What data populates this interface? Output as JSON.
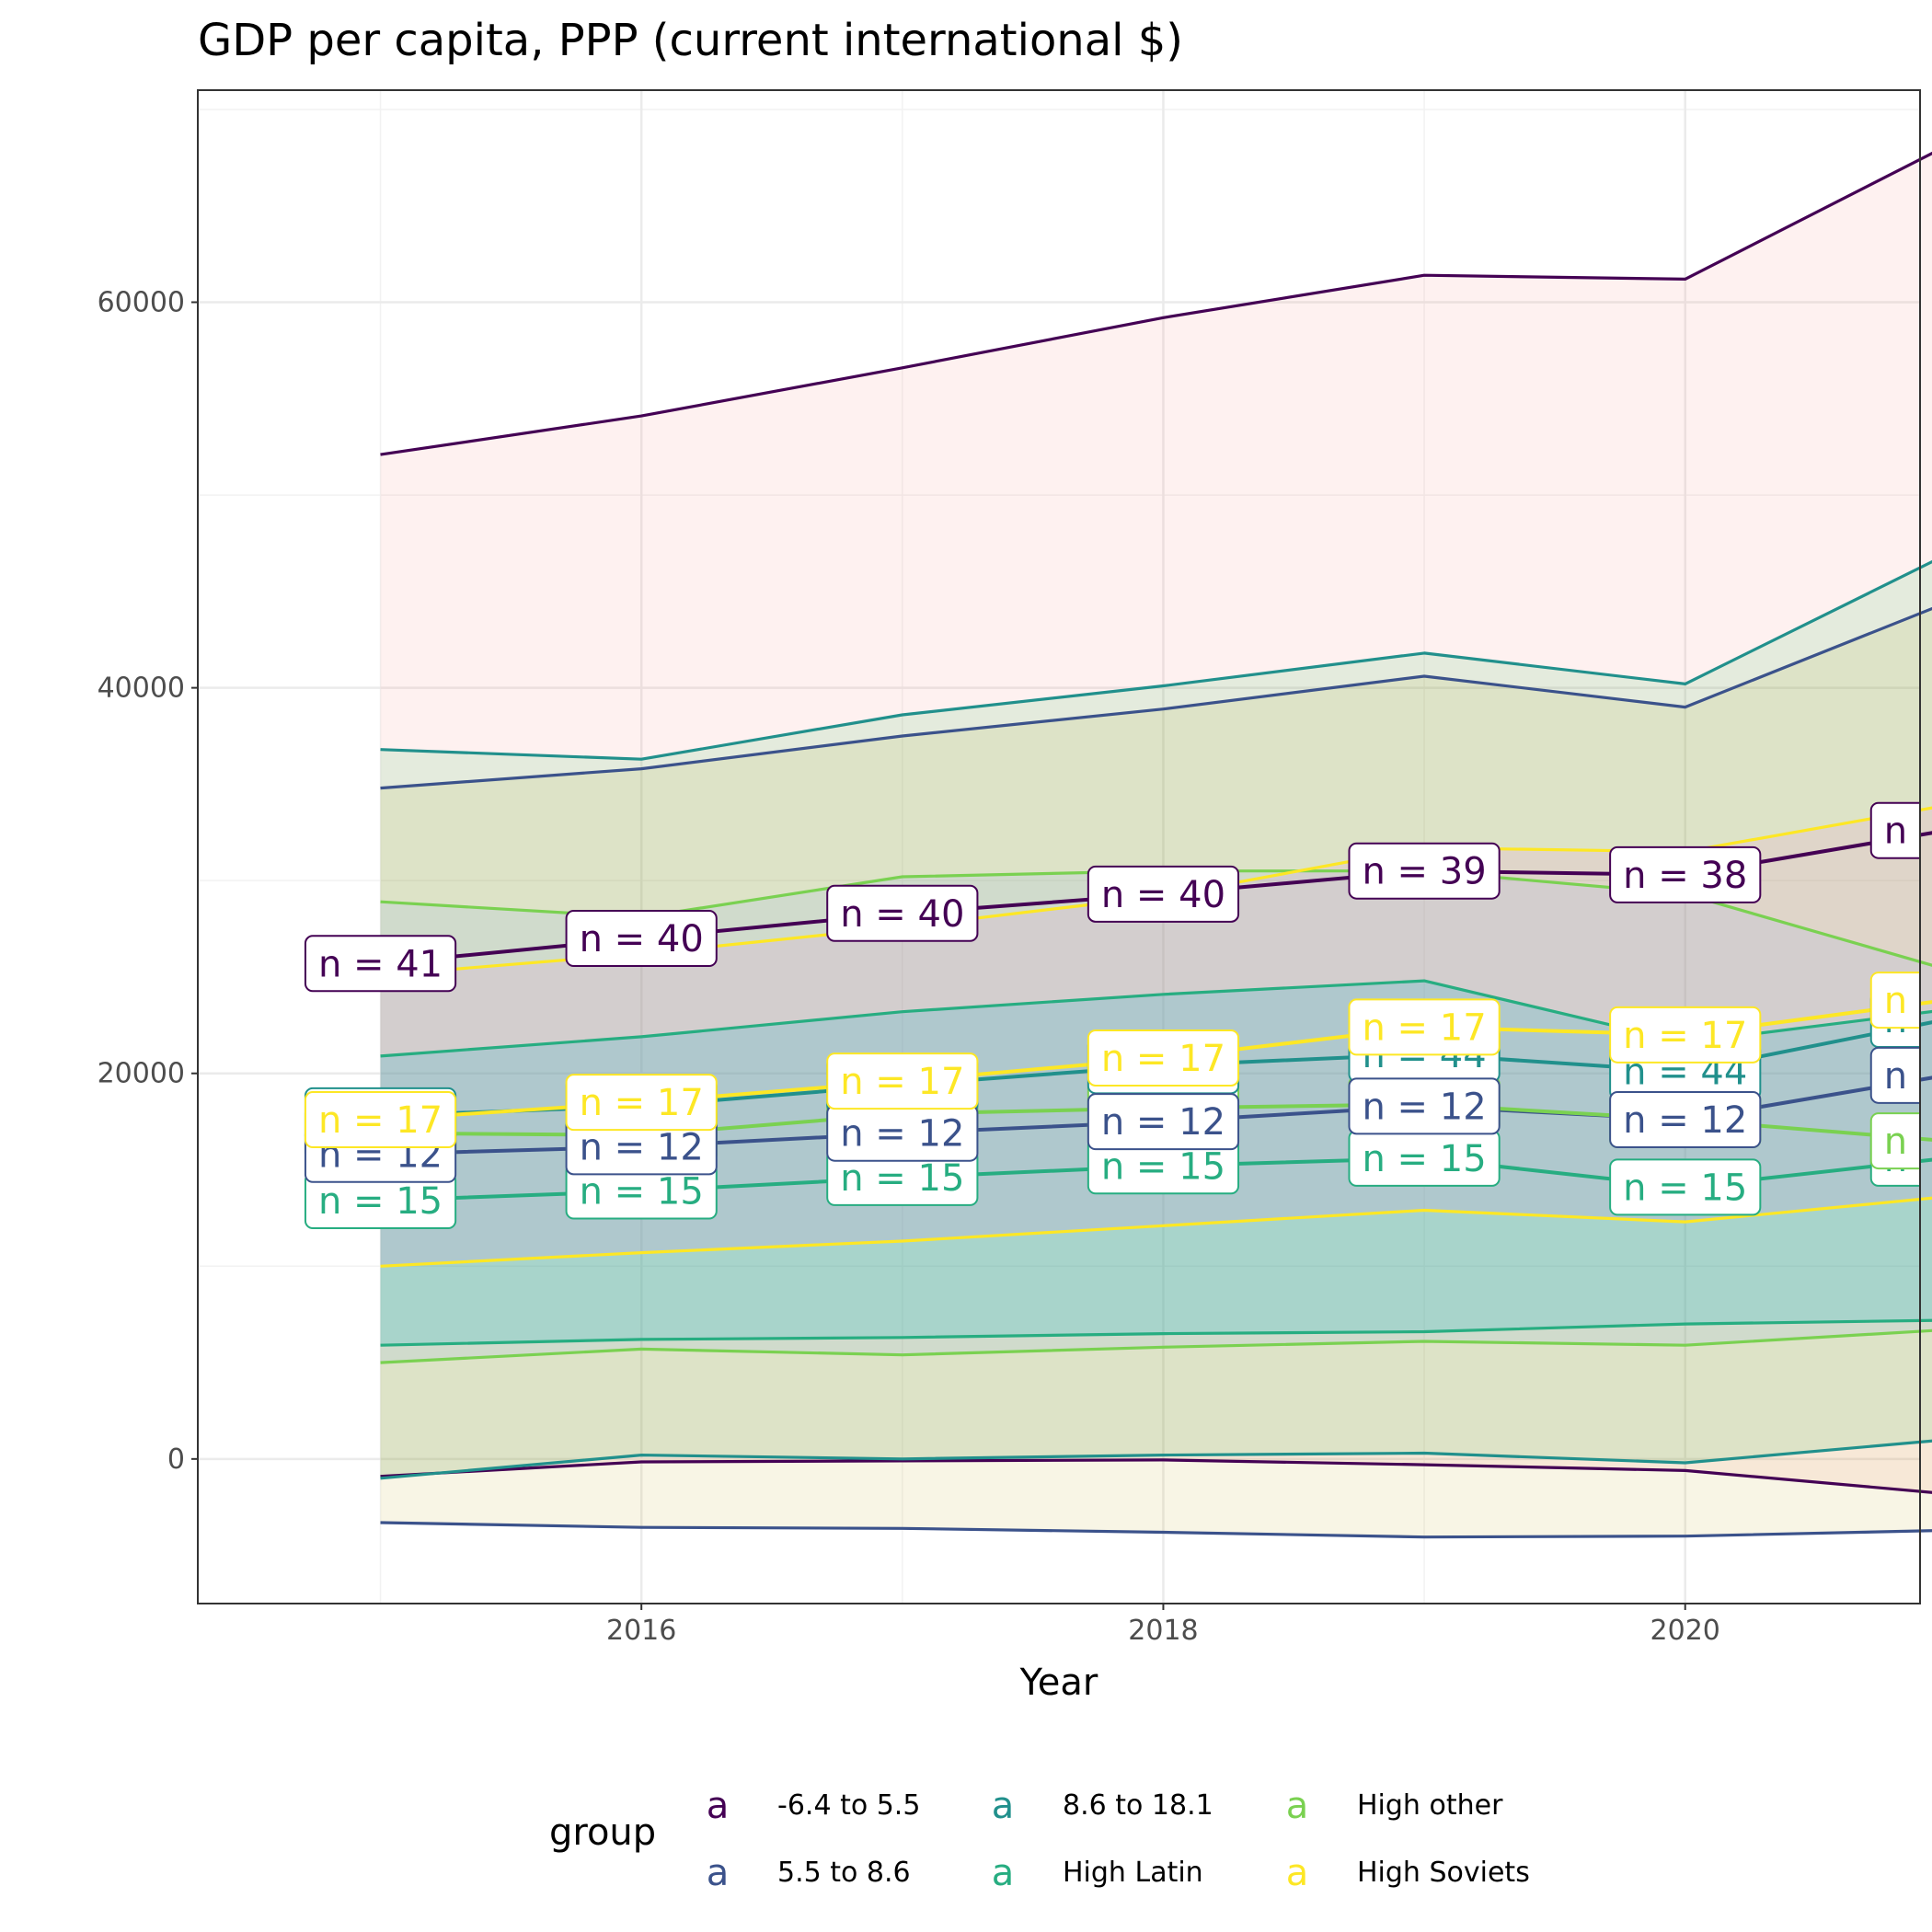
{
  "chart_data": {
    "type": "line",
    "title": "GDP per capita, PPP (current international $)",
    "xlabel": "Year",
    "ylabel": "",
    "x": [
      2015,
      2016,
      2017,
      2018,
      2019,
      2020,
      2021
    ],
    "xlim": [
      2014.3,
      2020.9
    ],
    "ylim": [
      -7500,
      71000
    ],
    "x_ticks": [
      2016,
      2018,
      2020
    ],
    "y_ticks": [
      0,
      20000,
      40000,
      60000
    ],
    "grid": true,
    "legend_title": "group",
    "legend_position": "bottom",
    "legend_key_glyph": "a",
    "series": [
      {
        "name": "-6.4 to 5.5",
        "color": "#440154",
        "band_fill": "#F8766D",
        "band_opacity": 0.1,
        "mean": [
          25700,
          27000,
          28300,
          29300,
          30500,
          30300,
          32600
        ],
        "upper": [
          52100,
          54100,
          56600,
          59200,
          61400,
          61200,
          68100
        ],
        "lower": [
          -900,
          -150,
          -100,
          -50,
          -300,
          -600,
          -1800
        ],
        "n": [
          41,
          40,
          40,
          40,
          39,
          38,
          35
        ]
      },
      {
        "name": "5.5 to 8.6",
        "color": "#3B528B",
        "band_fill": "#B79F00",
        "band_opacity": 0.1,
        "mean": [
          15800,
          16200,
          16900,
          17500,
          18300,
          17600,
          19900
        ],
        "upper": [
          34800,
          35800,
          37500,
          38900,
          40600,
          39000,
          44400
        ],
        "lower": [
          -3300,
          -3550,
          -3600,
          -3800,
          -4050,
          -4000,
          -3700
        ],
        "n": [
          12,
          12,
          12,
          12,
          12,
          12,
          34
        ]
      },
      {
        "name": "8.6 to 18.1",
        "color": "#21908C",
        "band_fill": "#00BA38",
        "band_opacity": 0.1,
        "mean": [
          17800,
          18300,
          19400,
          20400,
          21000,
          20100,
          22800
        ],
        "upper": [
          36800,
          36300,
          38600,
          40100,
          41800,
          40200,
          46900
        ],
        "lower": [
          -1000,
          200,
          0,
          200,
          300,
          -200,
          1000
        ],
        "n": [
          44,
          44,
          44,
          44,
          44,
          44,
          44
        ]
      },
      {
        "name": "High Latin",
        "color": "#27AD81",
        "band_fill": "#00BFC4",
        "band_opacity": 0.2,
        "mean": [
          13400,
          13900,
          14600,
          15200,
          15600,
          14100,
          15600
        ],
        "upper": [
          20900,
          21900,
          23200,
          24100,
          24800,
          21600,
          23300
        ],
        "lower": [
          5900,
          6200,
          6300,
          6500,
          6600,
          7000,
          7200
        ],
        "n": [
          15,
          15,
          15,
          15,
          15,
          15,
          15
        ]
      },
      {
        "name": "High other",
        "color": "#7AD151",
        "band_fill": "#619CFF",
        "band_opacity": 0.1,
        "mean": [
          16900,
          16800,
          17900,
          18200,
          18400,
          17600,
          16500
        ],
        "upper": [
          28900,
          28100,
          30200,
          30500,
          30500,
          29300,
          25400
        ],
        "lower": [
          5000,
          5700,
          5400,
          5800,
          6100,
          5900,
          6700
        ],
        "n": [
          13,
          13,
          13,
          13,
          13,
          13,
          11
        ]
      },
      {
        "name": "High Soviets",
        "color": "#FDE725",
        "band_fill": "#F564E3",
        "band_opacity": 0.1,
        "mean": [
          17600,
          18500,
          19600,
          20800,
          22400,
          22000,
          23800
        ],
        "upper": [
          25100,
          26200,
          27600,
          29200,
          31700,
          31500,
          33900
        ],
        "lower": [
          10000,
          10700,
          11300,
          12100,
          12900,
          12300,
          13600
        ],
        "n": [
          17,
          17,
          17,
          17,
          17,
          17,
          16
        ]
      }
    ]
  }
}
